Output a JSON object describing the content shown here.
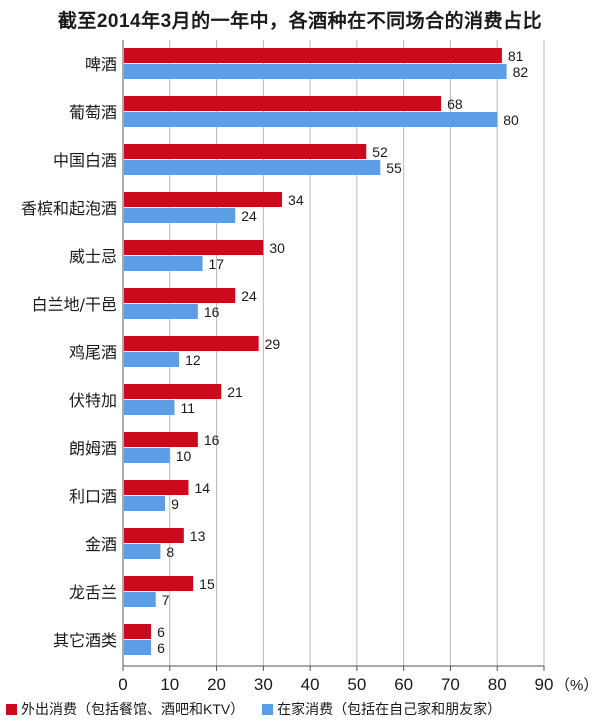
{
  "title": "截至2014年3月的一年中，各酒种在不同场合的消费占比",
  "chart_data": {
    "type": "bar",
    "orientation": "horizontal",
    "categories": [
      "啤酒",
      "葡萄酒",
      "中国白酒",
      "香槟和起泡酒",
      "威士忌",
      "白兰地/干邑",
      "鸡尾酒",
      "伏特加",
      "朗姆酒",
      "利口酒",
      "金酒",
      "龙舌兰",
      "其它酒类"
    ],
    "series": [
      {
        "name": "外出消费（包括餐馆、酒吧和KTV）",
        "color": "#cc0a1e",
        "values": [
          81,
          68,
          52,
          34,
          30,
          24,
          29,
          21,
          16,
          14,
          13,
          15,
          6
        ]
      },
      {
        "name": "在家消费（包括在自己家和朋友家）",
        "color": "#5b9ee6",
        "values": [
          82,
          80,
          55,
          24,
          17,
          16,
          12,
          11,
          10,
          9,
          8,
          7,
          6
        ]
      }
    ],
    "xlim": [
      0,
      90
    ],
    "xticks": [
      0,
      10,
      20,
      30,
      40,
      50,
      60,
      70,
      80,
      90
    ],
    "xunit": "（%）",
    "grid": true,
    "legend_position": "bottom",
    "data_labels": true
  }
}
